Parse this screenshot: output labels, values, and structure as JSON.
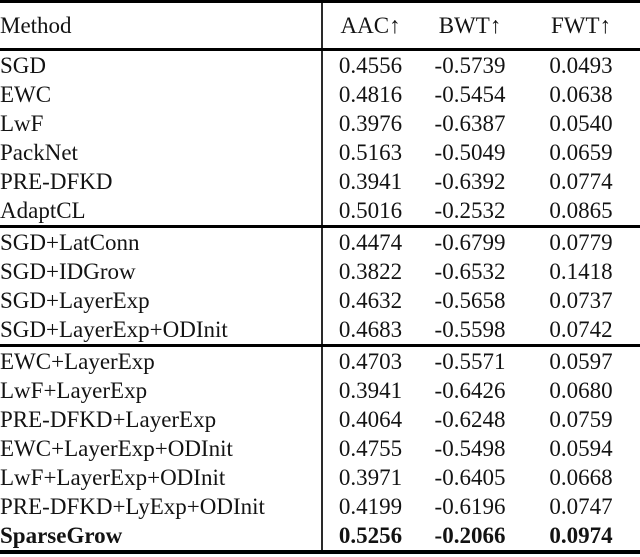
{
  "page": {
    "background": "#ffffff",
    "text_color": "#131313",
    "rule_color": "#000000"
  },
  "table": {
    "columns": [
      {
        "key": "method",
        "label": "Method"
      },
      {
        "key": "aac",
        "label": "AAC↑"
      },
      {
        "key": "bwt",
        "label": "BWT↑"
      },
      {
        "key": "fwt",
        "label": "FWT↑"
      }
    ],
    "groups": [
      {
        "name": "baselines",
        "rows": [
          {
            "method": "SGD",
            "aac": "0.4556",
            "bwt": "-0.5739",
            "fwt": "0.0493",
            "bold": false
          },
          {
            "method": "EWC",
            "aac": "0.4816",
            "bwt": "-0.5454",
            "fwt": "0.0638",
            "bold": false
          },
          {
            "method": "LwF",
            "aac": "0.3976",
            "bwt": "-0.6387",
            "fwt": "0.0540",
            "bold": false
          },
          {
            "method": "PackNet",
            "aac": "0.5163",
            "bwt": "-0.5049",
            "fwt": "0.0659",
            "bold": false
          },
          {
            "method": "PRE-DFKD",
            "aac": "0.3941",
            "bwt": "-0.6392",
            "fwt": "0.0774",
            "bold": false
          },
          {
            "method": "AdaptCL",
            "aac": "0.5016",
            "bwt": "-0.2532",
            "fwt": "0.0865",
            "bold": false
          }
        ]
      },
      {
        "name": "sgd-variants",
        "rows": [
          {
            "method": "SGD+LatConn",
            "aac": "0.4474",
            "bwt": "-0.6799",
            "fwt": "0.0779",
            "bold": false
          },
          {
            "method": "SGD+IDGrow",
            "aac": "0.3822",
            "bwt": "-0.6532",
            "fwt": "0.1418",
            "bold": false
          },
          {
            "method": "SGD+LayerExp",
            "aac": "0.4632",
            "bwt": "-0.5658",
            "fwt": "0.0737",
            "bold": false
          },
          {
            "method": "SGD+LayerExp+ODInit",
            "aac": "0.4683",
            "bwt": "-0.5598",
            "fwt": "0.0742",
            "bold": false
          }
        ]
      },
      {
        "name": "layerexp-variants",
        "rows": [
          {
            "method": "EWC+LayerExp",
            "aac": "0.4703",
            "bwt": "-0.5571",
            "fwt": "0.0597",
            "bold": false
          },
          {
            "method": "LwF+LayerExp",
            "aac": "0.3941",
            "bwt": "-0.6426",
            "fwt": "0.0680",
            "bold": false
          },
          {
            "method": "PRE-DFKD+LayerExp",
            "aac": "0.4064",
            "bwt": "-0.6248",
            "fwt": "0.0759",
            "bold": false
          },
          {
            "method": "EWC+LayerExp+ODInit",
            "aac": "0.4755",
            "bwt": "-0.5498",
            "fwt": "0.0594",
            "bold": false
          },
          {
            "method": "LwF+LayerExp+ODInit",
            "aac": "0.3971",
            "bwt": "-0.6405",
            "fwt": "0.0668",
            "bold": false
          },
          {
            "method": "PRE-DFKD+LyExp+ODInit",
            "aac": "0.4199",
            "bwt": "-0.6196",
            "fwt": "0.0747",
            "bold": false
          },
          {
            "method": "SparseGrow",
            "aac": "0.5256",
            "bwt": "-0.2066",
            "fwt": "0.0974",
            "bold": true
          }
        ]
      }
    ]
  }
}
